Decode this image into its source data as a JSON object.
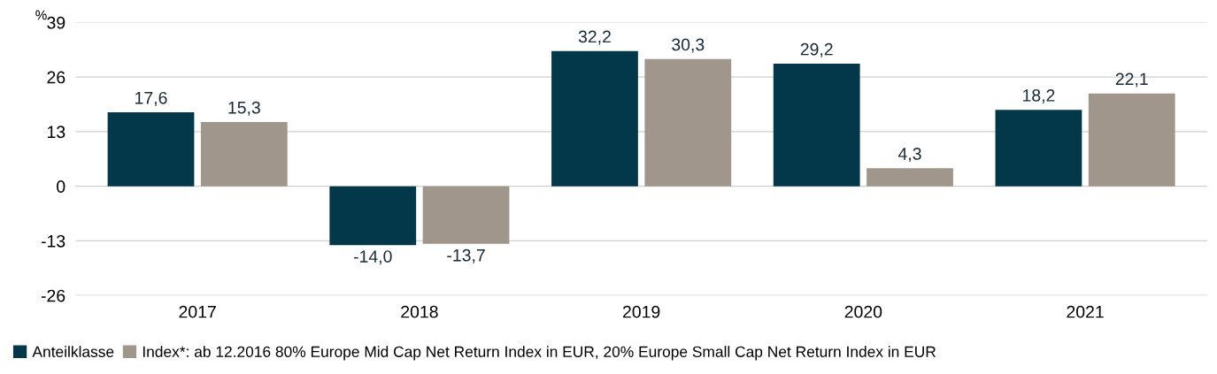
{
  "chart_data": {
    "type": "bar",
    "ylabel": "%",
    "categories": [
      "2017",
      "2018",
      "2019",
      "2020",
      "2021"
    ],
    "series": [
      {
        "name": "Anteilklasse",
        "color": "#03384a",
        "values": [
          17.6,
          -14.0,
          32.2,
          29.2,
          18.2
        ],
        "value_labels": [
          "17,6",
          "-14,0",
          "32,2",
          "29,2",
          "18,2"
        ]
      },
      {
        "name": "Index*: ab 12.2016 80% Europe Mid Cap Net Return Index in EUR, 20% Europe Small Cap Net Return Index in EUR",
        "color": "#a0968b",
        "values": [
          15.3,
          -13.7,
          30.3,
          4.3,
          22.1
        ],
        "value_labels": [
          "15,3",
          "-13,7",
          "30,3",
          "4,3",
          "22,1"
        ]
      }
    ],
    "ylim": [
      -26,
      39
    ],
    "yticks": [
      -26,
      -13,
      0,
      13,
      26,
      39
    ],
    "grid": "y",
    "legend": "bottom left"
  }
}
